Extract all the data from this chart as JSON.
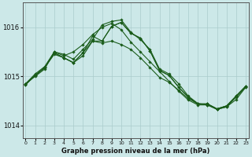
{
  "xlabel": "Graphe pression niveau de la mer (hPa)",
  "bg_color": "#cce8e8",
  "grid_color": "#aacccc",
  "line_color": "#1a5c1a",
  "ylim": [
    1013.75,
    1016.5
  ],
  "xlim": [
    -0.3,
    23.3
  ],
  "yticks": [
    1014,
    1015,
    1016
  ],
  "xticks": [
    0,
    1,
    2,
    3,
    4,
    5,
    6,
    7,
    8,
    9,
    10,
    11,
    12,
    13,
    14,
    15,
    16,
    17,
    18,
    19,
    20,
    21,
    22,
    23
  ],
  "series": [
    [
      1014.85,
      1015.0,
      1015.15,
      1015.5,
      1015.45,
      1015.35,
      1015.55,
      1015.75,
      1016.05,
      1016.12,
      1016.15,
      1015.9,
      1015.75,
      1015.55,
      1015.15,
      1015.05,
      1014.85,
      1014.6,
      1014.45,
      1014.42,
      1014.33,
      1014.38,
      1014.58,
      1014.78
    ],
    [
      1014.85,
      1015.05,
      1015.2,
      1015.5,
      1015.42,
      1015.5,
      1015.65,
      1015.85,
      1016.0,
      1016.08,
      1015.95,
      1015.7,
      1015.5,
      1015.3,
      1015.1,
      1014.9,
      1014.7,
      1014.52,
      1014.42,
      1014.42,
      1014.33,
      1014.38,
      1014.53,
      1014.78
    ],
    [
      1014.83,
      1015.02,
      1015.18,
      1015.48,
      1015.38,
      1015.28,
      1015.48,
      1015.82,
      1015.72,
      1016.02,
      1016.1,
      1015.88,
      1015.78,
      1015.52,
      1015.12,
      1015.02,
      1014.78,
      1014.58,
      1014.44,
      1014.44,
      1014.34,
      1014.4,
      1014.6,
      1014.8
    ],
    [
      1014.83,
      1015.02,
      1015.18,
      1015.48,
      1015.38,
      1015.28,
      1015.48,
      1015.72,
      1015.72,
      1016.02,
      1016.1,
      1015.88,
      1015.78,
      1015.52,
      1015.12,
      1015.02,
      1014.78,
      1014.58,
      1014.44,
      1014.44,
      1014.34,
      1014.4,
      1014.6,
      1014.8
    ]
  ],
  "series_flat": [
    [
      1014.85,
      1015.02,
      1015.18,
      1015.45,
      1015.38,
      1015.28,
      1015.42,
      1015.72,
      1015.68,
      1015.72,
      1015.65,
      1015.55,
      1015.38,
      1015.18,
      1014.98,
      1014.88,
      1014.72,
      1014.55,
      1014.44,
      1014.44,
      1014.34,
      1014.4,
      1014.6,
      1014.8
    ]
  ]
}
